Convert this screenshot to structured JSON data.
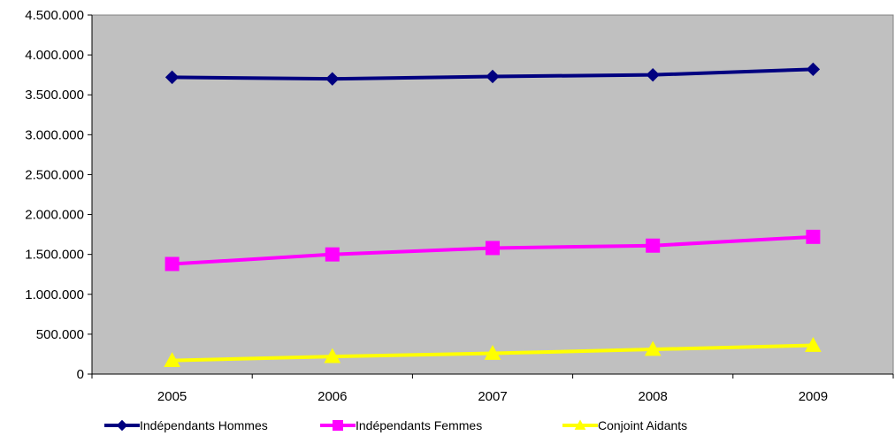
{
  "chart_data": {
    "type": "line",
    "categories": [
      "2005",
      "2006",
      "2007",
      "2008",
      "2009"
    ],
    "series": [
      {
        "name": "Indépendants Hommes",
        "values": [
          3720000,
          3700000,
          3730000,
          3750000,
          3820000
        ],
        "color": "#000080",
        "marker": "diamond"
      },
      {
        "name": "Indépendants Femmes",
        "values": [
          1380000,
          1500000,
          1580000,
          1610000,
          1720000
        ],
        "color": "#FF00FF",
        "marker": "square"
      },
      {
        "name": "Conjoint Aidants",
        "values": [
          170000,
          220000,
          260000,
          310000,
          360000
        ],
        "color": "#FFFF00",
        "marker": "triangle"
      }
    ],
    "y_ticks": [
      "0",
      "500.000",
      "1.000.000",
      "1.500.000",
      "2.000.000",
      "2.500.000",
      "3.000.000",
      "3.500.000",
      "4.000.000",
      "4.500.000"
    ],
    "ylim": [
      0,
      4500000
    ],
    "title": "",
    "xlabel": "",
    "ylabel": "",
    "grid": false,
    "legend_position": "bottom",
    "plot_background": "#C0C0C0"
  }
}
